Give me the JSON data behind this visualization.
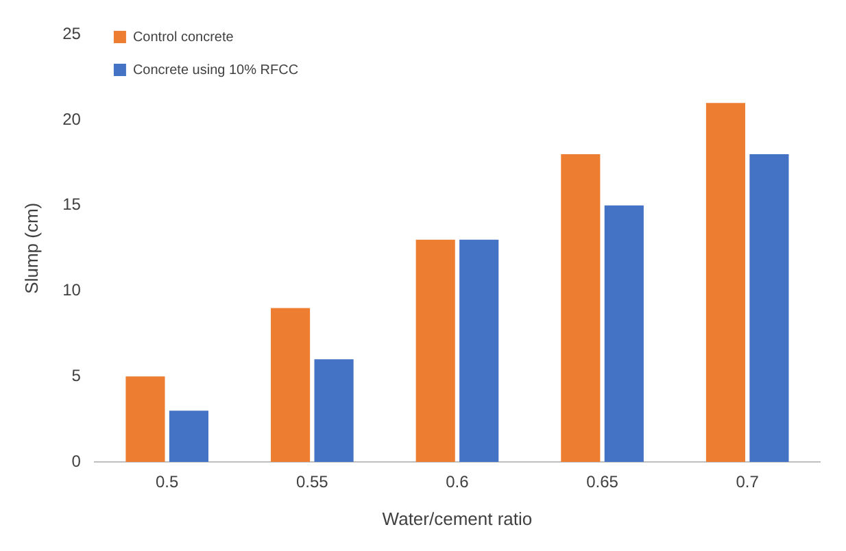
{
  "chart_data": {
    "type": "bar",
    "xlabel": "Water/cement ratio",
    "ylabel": "Slump (cm)",
    "categories": [
      "0.5",
      "0.55",
      "0.6",
      "0.65",
      "0.7"
    ],
    "series": [
      {
        "name": "Control concrete",
        "color": "#ed7d31",
        "values": [
          5,
          9,
          13,
          18,
          21
        ]
      },
      {
        "name": "Concrete using 10% RFCC",
        "color": "#4472c4",
        "values": [
          3,
          6,
          13,
          15,
          18
        ]
      }
    ],
    "ylim": [
      0,
      25
    ],
    "yticks": [
      0,
      5,
      10,
      15,
      20,
      25
    ],
    "grid": false,
    "legend": "top left"
  }
}
